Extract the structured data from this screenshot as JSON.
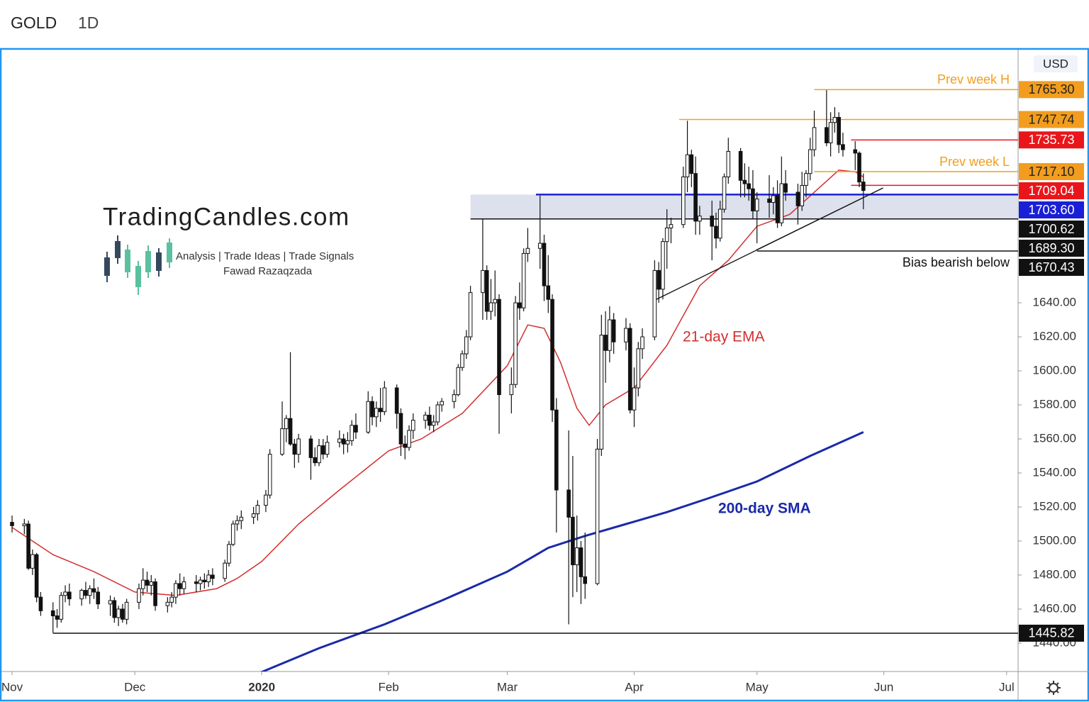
{
  "header": {
    "symbol": "GOLD",
    "interval": "1D"
  },
  "logo": {
    "name": "TradingCandles.com",
    "tagline": "Analysis | Trade Ideas | Trade Signals",
    "author": "Fawad Razaqzada"
  },
  "chart_data": {
    "type": "candlestick",
    "currency": "USD",
    "up_color": "#ffffff",
    "down_color": "#111111",
    "outline_color": "#111111",
    "xlim": [
      -2.6,
      245.8
    ],
    "xticks": [
      {
        "value": 0,
        "label": "Nov"
      },
      {
        "value": 30,
        "label": "Dec"
      },
      {
        "value": 61,
        "label": "2020"
      },
      {
        "value": 92,
        "label": "Feb"
      },
      {
        "value": 121,
        "label": "Mar"
      },
      {
        "value": 152,
        "label": "Apr"
      },
      {
        "value": 182,
        "label": "May"
      },
      {
        "value": 213,
        "label": "Jun"
      },
      {
        "value": 243,
        "label": "Jul"
      }
    ],
    "ylim": [
      1423.3,
      1788.8
    ],
    "yticks": [
      {
        "value": 1440,
        "label": "1440.00"
      },
      {
        "value": 1460,
        "label": "1460.00"
      },
      {
        "value": 1480,
        "label": "1480.00"
      },
      {
        "value": 1500,
        "label": "1500.00"
      },
      {
        "value": 1520,
        "label": "1520.00"
      },
      {
        "value": 1540,
        "label": "1540.00"
      },
      {
        "value": 1560,
        "label": "1560.00"
      },
      {
        "value": 1580,
        "label": "1580.00"
      },
      {
        "value": 1600,
        "label": "1600.00"
      },
      {
        "value": 1620,
        "label": "1620.00"
      },
      {
        "value": 1640,
        "label": "1640.00"
      }
    ],
    "candles": [
      [
        0,
        1511,
        1515,
        1505,
        1509
      ],
      [
        3,
        1509,
        1513,
        1504,
        1510
      ],
      [
        4,
        1510,
        1512,
        1483,
        1484
      ],
      [
        5,
        1484,
        1495,
        1480,
        1492
      ],
      [
        6,
        1492,
        1493,
        1464,
        1467
      ],
      [
        7,
        1467,
        1470,
        1456,
        1459
      ],
      [
        10,
        1459,
        1464,
        1446,
        1456
      ],
      [
        11,
        1456,
        1460,
        1449,
        1454
      ],
      [
        12,
        1454,
        1470,
        1452,
        1468
      ],
      [
        13,
        1468,
        1474,
        1464,
        1470
      ],
      [
        14,
        1470,
        1475,
        1462,
        1466
      ],
      [
        17,
        1466,
        1472,
        1462,
        1471
      ],
      [
        18,
        1471,
        1476,
        1466,
        1468
      ],
      [
        19,
        1468,
        1474,
        1463,
        1472
      ],
      [
        20,
        1472,
        1478,
        1466,
        1470
      ],
      [
        21,
        1470,
        1473,
        1460,
        1463
      ],
      [
        24,
        1463,
        1468,
        1456,
        1465
      ],
      [
        25,
        1465,
        1467,
        1452,
        1455
      ],
      [
        26,
        1455,
        1462,
        1450,
        1460
      ],
      [
        27,
        1460,
        1463,
        1452,
        1454
      ],
      [
        28,
        1454,
        1466,
        1451,
        1464
      ],
      [
        31,
        1464,
        1475,
        1460,
        1472
      ],
      [
        32,
        1472,
        1484,
        1468,
        1477
      ],
      [
        33,
        1477,
        1482,
        1470,
        1474
      ],
      [
        34,
        1474,
        1480,
        1468,
        1476
      ],
      [
        35,
        1476,
        1478,
        1459,
        1462
      ],
      [
        38,
        1462,
        1467,
        1458,
        1464
      ],
      [
        39,
        1464,
        1470,
        1461,
        1467
      ],
      [
        40,
        1467,
        1477,
        1463,
        1475
      ],
      [
        41,
        1475,
        1481,
        1468,
        1472
      ],
      [
        42,
        1472,
        1479,
        1469,
        1476
      ],
      [
        45,
        1476,
        1480,
        1470,
        1475
      ],
      [
        46,
        1475,
        1479,
        1471,
        1477
      ],
      [
        47,
        1477,
        1481,
        1472,
        1476
      ],
      [
        48,
        1476,
        1483,
        1473,
        1480
      ],
      [
        49,
        1480,
        1484,
        1474,
        1478
      ],
      [
        52,
        1478,
        1489,
        1476,
        1487
      ],
      [
        53,
        1487,
        1500,
        1485,
        1498
      ],
      [
        54,
        1498,
        1512,
        1497,
        1510
      ],
      [
        55,
        1510,
        1515,
        1506,
        1512
      ],
      [
        56,
        1512,
        1518,
        1507,
        1514
      ],
      [
        59,
        1514,
        1520,
        1510,
        1516
      ],
      [
        60,
        1516,
        1524,
        1512,
        1521
      ],
      [
        62,
        1521,
        1530,
        1517,
        1527
      ],
      [
        63,
        1527,
        1554,
        1525,
        1551
      ],
      [
        66,
        1551,
        1582,
        1550,
        1566
      ],
      [
        67,
        1566,
        1574,
        1558,
        1572
      ],
      [
        68,
        1572,
        1611,
        1556,
        1557
      ],
      [
        69,
        1557,
        1560,
        1543,
        1551
      ],
      [
        70,
        1551,
        1563,
        1546,
        1560
      ],
      [
        73,
        1560,
        1562,
        1536,
        1549
      ],
      [
        74,
        1549,
        1555,
        1544,
        1546
      ],
      [
        75,
        1546,
        1560,
        1544,
        1556
      ],
      [
        76,
        1556,
        1560,
        1548,
        1551
      ],
      [
        77,
        1551,
        1562,
        1549,
        1558
      ],
      [
        80,
        1558,
        1565,
        1555,
        1560
      ],
      [
        81,
        1560,
        1563,
        1551,
        1557
      ],
      [
        82,
        1557,
        1564,
        1552,
        1559
      ],
      [
        83,
        1559,
        1571,
        1556,
        1568
      ],
      [
        84,
        1568,
        1575,
        1560,
        1564
      ],
      [
        87,
        1564,
        1588,
        1563,
        1582
      ],
      [
        88,
        1582,
        1585,
        1568,
        1573
      ],
      [
        89,
        1573,
        1582,
        1567,
        1578
      ],
      [
        90,
        1578,
        1590,
        1570,
        1576
      ],
      [
        91,
        1576,
        1594,
        1574,
        1590
      ],
      [
        94,
        1590,
        1592,
        1566,
        1575
      ],
      [
        95,
        1575,
        1578,
        1550,
        1557
      ],
      [
        96,
        1557,
        1562,
        1548,
        1555
      ],
      [
        97,
        1555,
        1568,
        1553,
        1565
      ],
      [
        98,
        1565,
        1575,
        1560,
        1571
      ],
      [
        101,
        1571,
        1576,
        1566,
        1574
      ],
      [
        102,
        1574,
        1579,
        1565,
        1568
      ],
      [
        103,
        1568,
        1574,
        1564,
        1570
      ],
      [
        104,
        1570,
        1582,
        1568,
        1580
      ],
      [
        105,
        1580,
        1584,
        1576,
        1582
      ],
      [
        108,
        1582,
        1589,
        1578,
        1586
      ],
      [
        109,
        1586,
        1604,
        1585,
        1602
      ],
      [
        110,
        1602,
        1612,
        1600,
        1610
      ],
      [
        111,
        1610,
        1624,
        1607,
        1620
      ],
      [
        112,
        1620,
        1650,
        1618,
        1646
      ],
      [
        115,
        1646,
        1689,
        1630,
        1659
      ],
      [
        116,
        1659,
        1662,
        1630,
        1635
      ],
      [
        117,
        1635,
        1654,
        1630,
        1640
      ],
      [
        118,
        1640,
        1659,
        1632,
        1642
      ],
      [
        119,
        1642,
        1645,
        1563,
        1586
      ],
      [
        122,
        1586,
        1602,
        1575,
        1592
      ],
      [
        123,
        1592,
        1644,
        1590,
        1640
      ],
      [
        124,
        1640,
        1652,
        1630,
        1637
      ],
      [
        125,
        1637,
        1672,
        1635,
        1669
      ],
      [
        126,
        1669,
        1684,
        1664,
        1672
      ],
      [
        129,
        1672,
        1703,
        1660,
        1675
      ],
      [
        130,
        1675,
        1680,
        1641,
        1650
      ],
      [
        131,
        1650,
        1668,
        1634,
        1642
      ],
      [
        132,
        1642,
        1645,
        1570,
        1577
      ],
      [
        133,
        1577,
        1584,
        1505,
        1530
      ],
      [
        136,
        1530,
        1565,
        1451,
        1514
      ],
      [
        137,
        1514,
        1550,
        1467,
        1486
      ],
      [
        138,
        1486,
        1515,
        1470,
        1496
      ],
      [
        139,
        1496,
        1500,
        1463,
        1479
      ],
      [
        140,
        1479,
        1505,
        1466,
        1475
      ],
      [
        143,
        1475,
        1560,
        1474,
        1554
      ],
      [
        144,
        1554,
        1633,
        1550,
        1621
      ],
      [
        145,
        1621,
        1635,
        1593,
        1612
      ],
      [
        146,
        1612,
        1638,
        1605,
        1630
      ],
      [
        147,
        1630,
        1634,
        1610,
        1617
      ],
      [
        150,
        1617,
        1631,
        1612,
        1625
      ],
      [
        151,
        1625,
        1628,
        1575,
        1577
      ],
      [
        152,
        1577,
        1602,
        1567,
        1590
      ],
      [
        153,
        1590,
        1617,
        1585,
        1613
      ],
      [
        154,
        1613,
        1625,
        1607,
        1620
      ],
      [
        157,
        1620,
        1665,
        1618,
        1659
      ],
      [
        158,
        1659,
        1664,
        1640,
        1648
      ],
      [
        159,
        1648,
        1678,
        1642,
        1676
      ],
      [
        160,
        1676,
        1695,
        1660,
        1684
      ],
      [
        161,
        1684,
        1690,
        1675,
        1686
      ],
      [
        164,
        1686,
        1720,
        1684,
        1714
      ],
      [
        165,
        1714,
        1747,
        1705,
        1727
      ],
      [
        166,
        1727,
        1730,
        1708,
        1716
      ],
      [
        167,
        1716,
        1726,
        1680,
        1688
      ],
      [
        168,
        1688,
        1697,
        1680,
        1691
      ],
      [
        171,
        1691,
        1700,
        1665,
        1685
      ],
      [
        172,
        1685,
        1693,
        1672,
        1678
      ],
      [
        173,
        1678,
        1700,
        1676,
        1695
      ],
      [
        174,
        1695,
        1716,
        1693,
        1714
      ],
      [
        175,
        1714,
        1737,
        1710,
        1729
      ],
      [
        178,
        1729,
        1731,
        1702,
        1712
      ],
      [
        179,
        1712,
        1722,
        1702,
        1710
      ],
      [
        180,
        1710,
        1720,
        1700,
        1707
      ],
      [
        181,
        1707,
        1718,
        1689,
        1694
      ],
      [
        182,
        1694,
        1705,
        1675,
        1701
      ],
      [
        185,
        1701,
        1715,
        1690,
        1699
      ],
      [
        186,
        1699,
        1708,
        1692,
        1703
      ],
      [
        187,
        1703,
        1712,
        1684,
        1687
      ],
      [
        188,
        1687,
        1726,
        1685,
        1710
      ],
      [
        189,
        1710,
        1718,
        1700,
        1705
      ],
      [
        192,
        1705,
        1710,
        1686,
        1697
      ],
      [
        193,
        1697,
        1717,
        1694,
        1709
      ],
      [
        194,
        1709,
        1718,
        1702,
        1716
      ],
      [
        195,
        1716,
        1737,
        1712,
        1730
      ],
      [
        196,
        1730,
        1753,
        1726,
        1743
      ],
      [
        199,
        1743,
        1765,
        1732,
        1734
      ],
      [
        200,
        1734,
        1752,
        1726,
        1746
      ],
      [
        201,
        1746,
        1755,
        1740,
        1749
      ],
      [
        202,
        1749,
        1752,
        1728,
        1733
      ],
      [
        203,
        1733,
        1740,
        1726,
        1730
      ],
      [
        206,
        1730,
        1735,
        1718,
        1728
      ],
      [
        207,
        1728,
        1729,
        1708,
        1711
      ],
      [
        208,
        1711,
        1716,
        1695,
        1706
      ]
    ],
    "series": [
      {
        "name": "21-day EMA",
        "color": "#d32f2f",
        "x": [
          0,
          10,
          20,
          30,
          40,
          50,
          55,
          61,
          70,
          80,
          92,
          100,
          110,
          121,
          126,
          130,
          134,
          138,
          141,
          145,
          152,
          160,
          168,
          175,
          182,
          190,
          196,
          202,
          206,
          208
        ],
        "values": [
          1508,
          1492,
          1482,
          1470,
          1468,
          1472,
          1478,
          1488,
          1510,
          1530,
          1553,
          1560,
          1575,
          1603,
          1627,
          1625,
          1605,
          1578,
          1568,
          1580,
          1590,
          1615,
          1650,
          1665,
          1685,
          1692,
          1705,
          1718,
          1717,
          1714
        ]
      },
      {
        "name": "200-day SMA",
        "color": "#1a2aa8",
        "x": [
          60,
          75,
          91,
          105,
          121,
          131,
          140,
          150,
          160,
          170,
          182,
          195,
          208
        ],
        "values": [
          1422,
          1437,
          1451,
          1465,
          1482,
          1496,
          1503,
          1510,
          1517,
          1525,
          1535,
          1550,
          1564
        ]
      }
    ],
    "zone": {
      "low": 1689.3,
      "high": 1703.6,
      "from": 112
    },
    "trendlines": [
      {
        "x": [
          157.4,
          212.8
        ],
        "y": [
          1642,
          1707.5
        ]
      },
      {
        "x": [
          181.8,
          212.8
        ],
        "y": [
          1671,
          1707.5
        ]
      }
    ],
    "levels": [
      {
        "value": 1765.3,
        "label": "1765.30",
        "color": "#f29d1f",
        "text_color": "#222222",
        "from": 196,
        "note": "Prev week H"
      },
      {
        "value": 1747.74,
        "label": "1747.74",
        "color": "#f29d1f",
        "text_color": "#222222",
        "from": 163
      },
      {
        "value": 1735.73,
        "label": "1735.73",
        "color": "#e8161b",
        "text_color": "#ffffff",
        "from": 205
      },
      {
        "value": 1717.1,
        "label": "1717.10",
        "color": "#f29d1f",
        "text_color": "#222222",
        "from": 196,
        "note": "Prev week L"
      },
      {
        "value": 1709.04,
        "label": "1709.04",
        "color": "#e8161b",
        "text_color": "#ffffff",
        "from": 205
      },
      {
        "value": 1703.6,
        "label": "1703.60",
        "color": "#1a1fd6",
        "text_color": "#ffffff",
        "from": 128
      },
      {
        "value": 1700.62,
        "label": "1700.62",
        "color": "#111111",
        "text_color": "#ffffff",
        "from": null
      },
      {
        "value": 1689.3,
        "label": "1689.30",
        "color": "#111111",
        "text_color": "#ffffff",
        "from": 112
      },
      {
        "value": 1670.43,
        "label": "1670.43",
        "color": "#111111",
        "text_color": "#ffffff",
        "from": 182,
        "note": "Bias bearish below"
      },
      {
        "value": 1445.82,
        "label": "1445.82",
        "color": "#111111",
        "text_color": "#ffffff",
        "from": 10
      }
    ]
  }
}
